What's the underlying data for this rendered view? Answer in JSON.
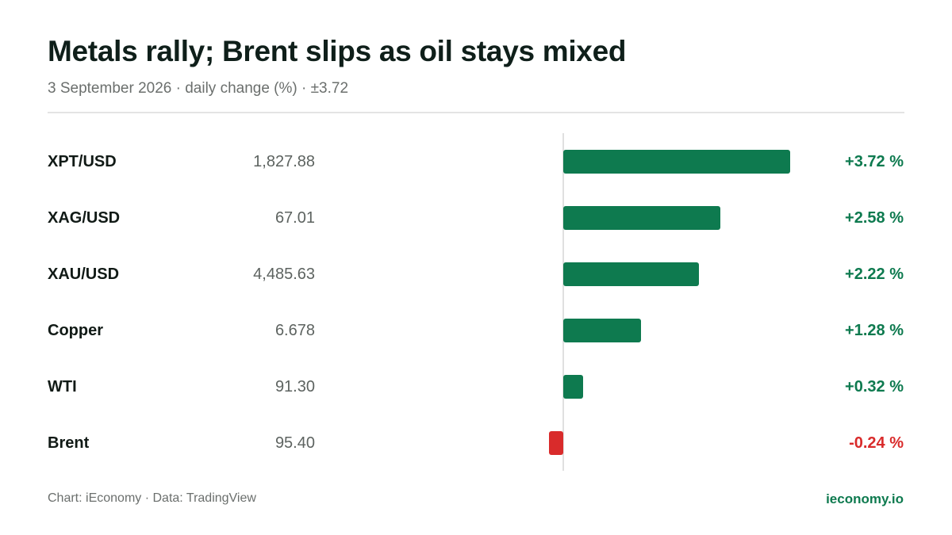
{
  "header": {
    "title": "Metals rally; Brent slips as oil stays mixed",
    "subtitle": "3 September 2026 · daily change (%) · ±3.72"
  },
  "footer": {
    "source": "Chart: iEconomy · Data: TradingView",
    "brand": "ieconomy.io"
  },
  "colors": {
    "positive": "#0e7a4f",
    "negative": "#d92b2b",
    "axis": "#e0e0e0"
  },
  "chart_data": {
    "type": "bar",
    "orientation": "horizontal",
    "title": "Metals rally; Brent slips as oil stays mixed",
    "subtitle": "3 September 2026 · daily change (%) · ±3.72",
    "xlim": [
      -3.72,
      3.72
    ],
    "categories": [
      "XPT/USD",
      "XAG/USD",
      "XAU/USD",
      "Copper",
      "WTI",
      "Brent"
    ],
    "prices": [
      "1,827.88",
      "67.01",
      "4,485.63",
      "6.678",
      "91.30",
      "95.40"
    ],
    "values": [
      3.72,
      2.58,
      2.22,
      1.28,
      0.32,
      -0.24
    ],
    "value_labels": [
      "+3.72 %",
      "+2.58 %",
      "+2.22 %",
      "+1.28 %",
      "+0.32 %",
      "-0.24 %"
    ],
    "grid": false,
    "legend": "none"
  }
}
